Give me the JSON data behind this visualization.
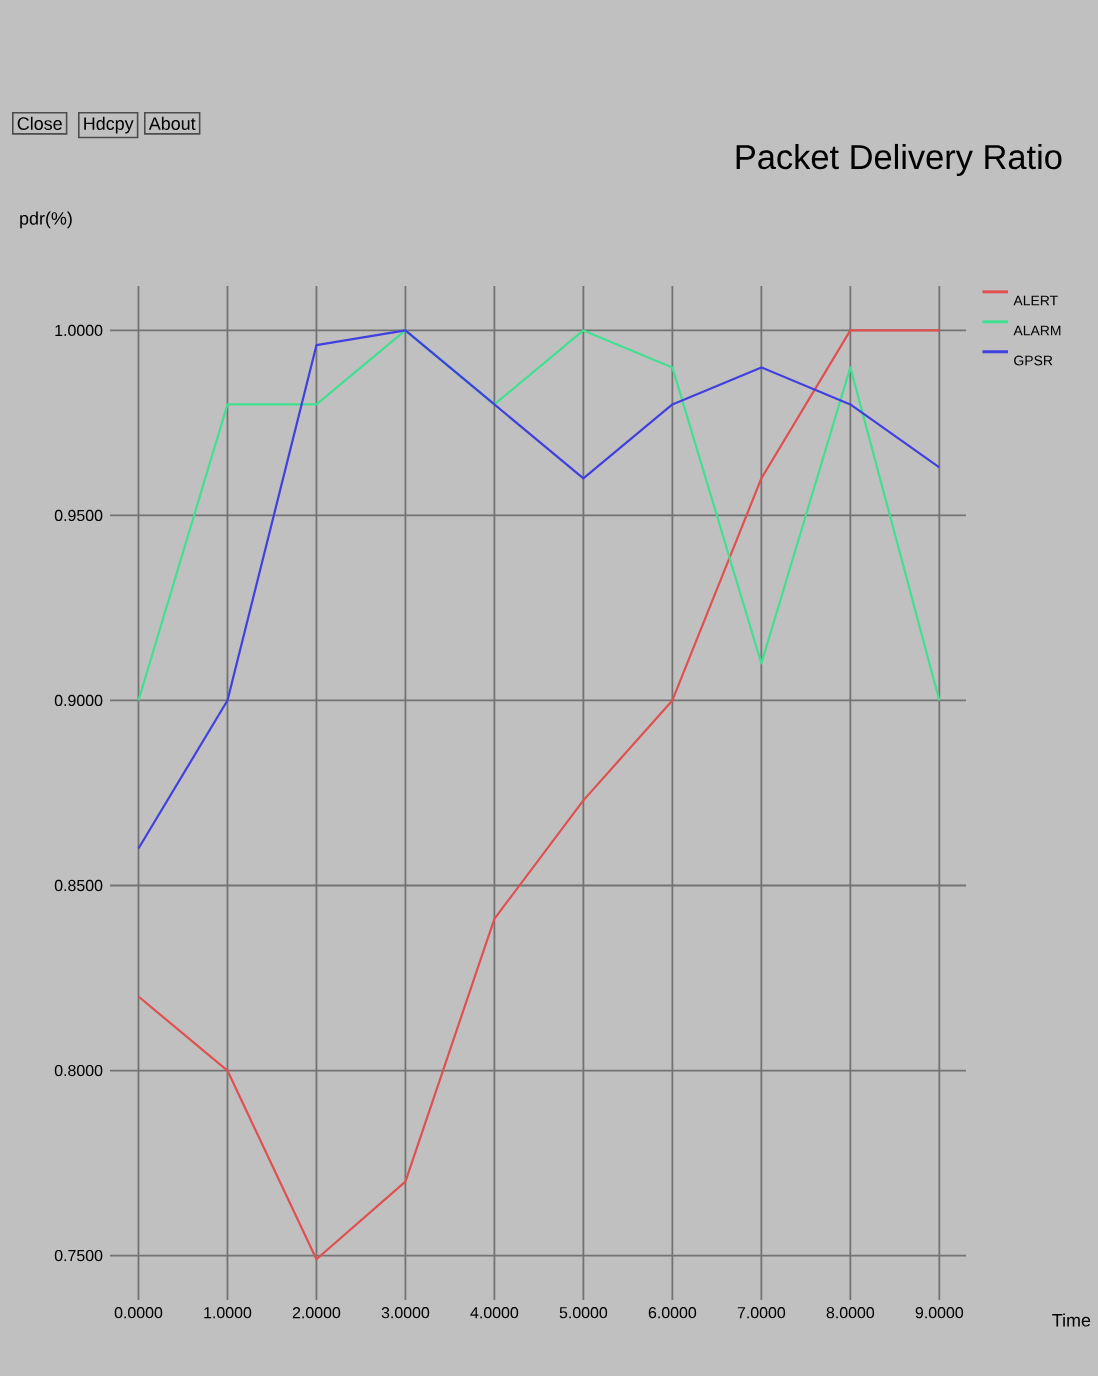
{
  "chart_data": {
    "type": "line",
    "title": "Packet Delivery Ratio",
    "ylabel": "pdr(%)",
    "xlabel": "Time",
    "annotations": [
      "Close",
      "Hdcpy",
      "About"
    ],
    "x": [
      0,
      1,
      2,
      3,
      4,
      5,
      6,
      7,
      8,
      9
    ],
    "series": [
      {
        "name": "ALERT",
        "color": "#e05050",
        "values": [
          0.82,
          0.8,
          0.749,
          0.77,
          0.841,
          0.873,
          0.9,
          0.96,
          1.0,
          1.0
        ]
      },
      {
        "name": "ALARM",
        "color": "#40e090",
        "values": [
          0.9,
          0.98,
          0.98,
          1.0,
          0.98,
          1.0,
          0.99,
          0.91,
          0.99,
          0.9
        ]
      },
      {
        "name": "GPSR",
        "color": "#4040e0",
        "values": [
          0.86,
          0.9,
          0.996,
          1.0,
          0.98,
          0.96,
          0.98,
          0.99,
          0.98,
          0.963
        ]
      }
    ],
    "xlim": [
      -0.32,
      9.3
    ],
    "ylim": [
      0.738,
      1.012
    ],
    "xticks": [
      {
        "value": 0,
        "label": "0.0000"
      },
      {
        "value": 1,
        "label": "1.0000"
      },
      {
        "value": 2,
        "label": "2.0000"
      },
      {
        "value": 3,
        "label": "3.0000"
      },
      {
        "value": 4,
        "label": "4.0000"
      },
      {
        "value": 5,
        "label": "5.0000"
      },
      {
        "value": 6,
        "label": "6.0000"
      },
      {
        "value": 7,
        "label": "7.0000"
      },
      {
        "value": 8,
        "label": "8.0000"
      },
      {
        "value": 9,
        "label": "9.0000"
      }
    ],
    "yticks": [
      {
        "value": 0.75,
        "label": "0.7500"
      },
      {
        "value": 0.8,
        "label": "0.8000"
      },
      {
        "value": 0.85,
        "label": "0.8500"
      },
      {
        "value": 0.9,
        "label": "0.9000"
      },
      {
        "value": 0.95,
        "label": "0.9500"
      },
      {
        "value": 1.0,
        "label": "1.0000"
      }
    ],
    "grid": true,
    "legend": "top right",
    "line_style": "solid"
  }
}
